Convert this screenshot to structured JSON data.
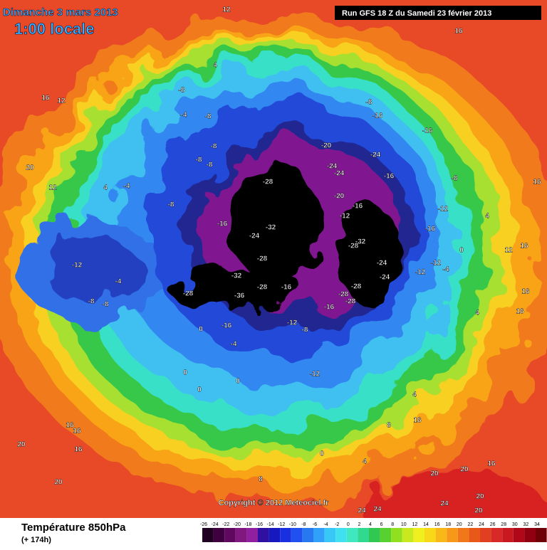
{
  "header": {
    "date": "Dimanche 3 mars 2013",
    "time": "1:00 locale",
    "run": "Run GFS 18 Z du Samedi 23 février 2013"
  },
  "footer": {
    "field": "Température 850hPa",
    "lead": "(+ 174h)",
    "copyright": "Copyright © 2012 Meteociel.fr"
  },
  "scale": {
    "labels": [
      -26,
      -24,
      -22,
      -20,
      -18,
      -16,
      -14,
      -12,
      -10,
      -8,
      -6,
      -4,
      -2,
      0,
      2,
      4,
      6,
      8,
      10,
      12,
      14,
      16,
      18,
      20,
      22,
      24,
      26,
      28,
      30,
      32,
      34
    ],
    "colors": [
      "#200020",
      "#400040",
      "#600860",
      "#801880",
      "#9020a0",
      "#3010a0",
      "#1818c0",
      "#1830e0",
      "#2050f0",
      "#2878f0",
      "#30a0f8",
      "#38c8f8",
      "#40e0f0",
      "#40e8c0",
      "#30d890",
      "#30c850",
      "#58d030",
      "#90e020",
      "#c8e820",
      "#f0f020",
      "#f8d818",
      "#f8b818",
      "#f89818",
      "#f07818",
      "#e85818",
      "#e04020",
      "#d82828",
      "#c81820",
      "#b00818",
      "#900010",
      "#700008"
    ]
  },
  "map": {
    "labels": [
      12,
      16,
      4,
      16,
      12,
      -8,
      -4,
      -8,
      -8,
      -16,
      -16,
      -8,
      -8,
      -8,
      -20,
      -24,
      -24,
      -24,
      -16,
      -28,
      -8,
      16,
      20,
      12,
      4,
      -4,
      -20,
      -12,
      -16,
      -8,
      -12,
      -16,
      -24,
      -32,
      -32,
      -28,
      -16,
      4,
      12,
      16,
      0,
      -12,
      -28,
      -24,
      -24,
      -12,
      -12,
      -4,
      -32,
      -4,
      -28,
      -36,
      -28,
      -16,
      -28,
      -28,
      -28,
      -8,
      -8,
      -16,
      -12,
      -8,
      -16,
      0,
      -4,
      -12,
      0,
      0,
      0,
      4,
      4,
      8,
      16,
      16,
      16,
      20,
      16,
      4,
      0,
      8,
      20,
      20,
      20,
      16,
      20,
      20,
      24,
      24,
      24,
      16,
      16
    ]
  }
}
